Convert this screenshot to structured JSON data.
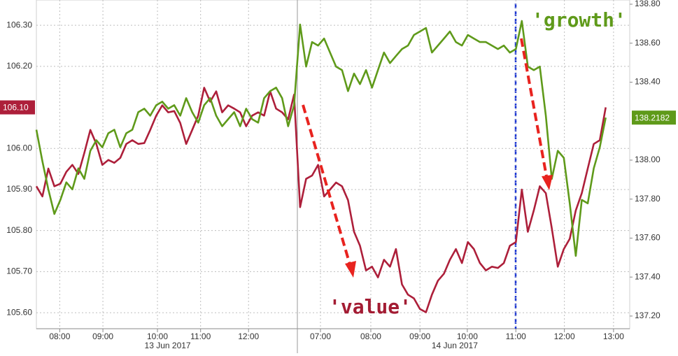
{
  "chart_data": {
    "type": "line",
    "xlim": [
      0,
      99
    ],
    "xticks": [
      {
        "value": 3.9,
        "label": "08:00"
      },
      {
        "value": 11.1,
        "label": "09:00"
      },
      {
        "value": 20.2,
        "label": "10:00"
      },
      {
        "value": 27.4,
        "label": "11:00"
      },
      {
        "value": 35.4,
        "label": "12:00"
      },
      {
        "value": 47.4,
        "label": "07:00"
      },
      {
        "value": 55.8,
        "label": "08:00"
      },
      {
        "value": 64,
        "label": "09:00"
      },
      {
        "value": 71.9,
        "label": "10:00"
      },
      {
        "value": 80,
        "label": "11:00"
      },
      {
        "value": 88.1,
        "label": "12:00"
      },
      {
        "value": 96.3,
        "label": "13:00"
      }
    ],
    "date_labels": [
      {
        "value": 21.9,
        "label": "13 Jun 2017"
      },
      {
        "value": 69.8,
        "label": "14 Jun 2017"
      }
    ],
    "ylim": [
      105.561,
      106.3615
    ],
    "yticks": [
      {
        "value": 105.6,
        "label": "105.60"
      },
      {
        "value": 105.7,
        "label": "105.70"
      },
      {
        "value": 105.8,
        "label": "105.80"
      },
      {
        "value": 105.9,
        "label": "105.90"
      },
      {
        "value": 106.0,
        "label": "106.00"
      },
      {
        "value": 106.2,
        "label": "106.20"
      },
      {
        "value": 106.3,
        "label": "106.30"
      }
    ],
    "y2lim": [
      137.135,
      138.8216
    ],
    "y2ticks": [
      {
        "value": 137.2,
        "label": "137.20"
      },
      {
        "value": 137.4,
        "label": "137.40"
      },
      {
        "value": 137.6,
        "label": "137.60"
      },
      {
        "value": 137.8,
        "label": "137.80"
      },
      {
        "value": 138.0,
        "label": "138.00"
      },
      {
        "value": 138.4,
        "label": "138.40"
      },
      {
        "value": 138.6,
        "label": "138.60"
      },
      {
        "value": 138.8,
        "label": "138.80"
      }
    ],
    "grid": true,
    "annotations": [
      {
        "text": "'growth'",
        "color": "#5f9a1a"
      },
      {
        "text": "'value'",
        "color": "#a31c33"
      }
    ],
    "series": [
      {
        "color": "#ad1f3a",
        "axis": "y",
        "show_last_value": true,
        "values": [
          105.908,
          105.883,
          105.951,
          105.908,
          105.914,
          105.943,
          105.96,
          105.938,
          105.989,
          106.045,
          106.011,
          105.96,
          105.972,
          105.965,
          105.977,
          106.011,
          106.02,
          106.011,
          106.013,
          106.045,
          106.08,
          106.105,
          106.088,
          106.091,
          106.062,
          106.011,
          106.045,
          106.08,
          106.148,
          106.114,
          106.139,
          106.088,
          106.105,
          106.097,
          106.088,
          106.054,
          106.08,
          106.088,
          106.08,
          106.139,
          106.097,
          106.088,
          106.071,
          106.131,
          105.857,
          105.926,
          105.934,
          105.96,
          105.883,
          105.9,
          105.917,
          105.908,
          105.874,
          105.797,
          105.763,
          105.703,
          105.712,
          105.686,
          105.729,
          105.712,
          105.755,
          105.669,
          105.644,
          105.635,
          105.609,
          105.601,
          105.644,
          105.678,
          105.695,
          105.729,
          105.755,
          105.721,
          105.772,
          105.755,
          105.721,
          105.703,
          105.712,
          105.709,
          105.721,
          105.763,
          105.772,
          105.9,
          105.797,
          105.849,
          105.908,
          105.891,
          105.806,
          105.712,
          105.755,
          105.78,
          105.849,
          105.891,
          105.951,
          106.011,
          106.02,
          106.1
        ],
        "value_labels": [
          null,
          null,
          null,
          null,
          null,
          null,
          null,
          null,
          null,
          null,
          null,
          null,
          null,
          null,
          null,
          null,
          null,
          null,
          null,
          null,
          null,
          null,
          null,
          null,
          null,
          null,
          null,
          null,
          null,
          null,
          null,
          null,
          null,
          null,
          null,
          null,
          null,
          null,
          null,
          null,
          null,
          null,
          null,
          null,
          null,
          null,
          null,
          null,
          null,
          null,
          null,
          null,
          null,
          null,
          null,
          null,
          null,
          null,
          null,
          null,
          null,
          null,
          null,
          null,
          null,
          null,
          null,
          null,
          null,
          null,
          null,
          null,
          null,
          null,
          null,
          null,
          null,
          null,
          null,
          null,
          null,
          null,
          null,
          null,
          null,
          null,
          null,
          null,
          null,
          null,
          null,
          null,
          null,
          null,
          null,
          "106.10"
        ]
      },
      {
        "color": "#5f9a1a",
        "axis": "y2",
        "show_last_value": true,
        "values": [
          138.156,
          137.994,
          137.85,
          137.724,
          137.796,
          137.886,
          137.85,
          137.958,
          137.904,
          138.048,
          138.102,
          138.066,
          138.138,
          138.156,
          138.066,
          138.138,
          138.156,
          138.246,
          138.264,
          138.228,
          138.282,
          138.3,
          138.264,
          138.282,
          138.228,
          138.318,
          138.246,
          138.192,
          138.282,
          138.318,
          138.228,
          138.174,
          138.21,
          138.246,
          138.174,
          138.264,
          138.21,
          138.192,
          138.318,
          138.354,
          138.372,
          138.318,
          138.174,
          138.282,
          138.696,
          138.48,
          138.606,
          138.588,
          138.624,
          138.552,
          138.48,
          138.462,
          138.354,
          138.444,
          138.39,
          138.462,
          138.372,
          138.462,
          138.552,
          138.498,
          138.534,
          138.57,
          138.588,
          138.642,
          138.66,
          138.678,
          138.552,
          138.588,
          138.624,
          138.66,
          138.606,
          138.588,
          138.642,
          138.624,
          138.606,
          138.606,
          138.588,
          138.57,
          138.588,
          138.552,
          138.57,
          138.714,
          138.48,
          138.462,
          138.48,
          138.228,
          137.904,
          138.048,
          138.012,
          137.778,
          137.509,
          137.796,
          137.778,
          137.958,
          138.066,
          138.2182
        ]
      }
    ]
  }
}
